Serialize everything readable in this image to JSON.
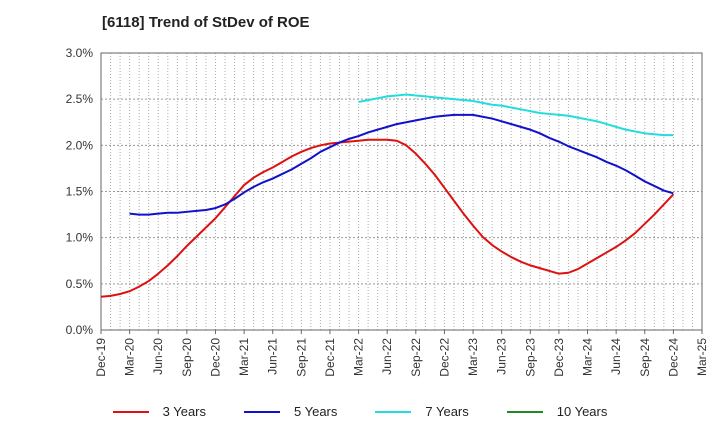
{
  "title": "[6118]  Trend of StDev of ROE",
  "chart_data": {
    "type": "line",
    "title": "[6118]  Trend of StDev of ROE",
    "xlabel": "",
    "ylabel": "",
    "x_ticks": [
      "Dec-19",
      "Mar-20",
      "Jun-20",
      "Sep-20",
      "Dec-20",
      "Mar-21",
      "Jun-21",
      "Sep-21",
      "Dec-21",
      "Mar-22",
      "Jun-22",
      "Sep-22",
      "Dec-22",
      "Mar-23",
      "Jun-23",
      "Sep-23",
      "Dec-23",
      "Mar-24",
      "Jun-24",
      "Sep-24",
      "Dec-24",
      "Mar-25"
    ],
    "y_ticks": [
      "0.0%",
      "0.5%",
      "1.0%",
      "1.5%",
      "2.0%",
      "2.5%",
      "3.0%"
    ],
    "ylim": [
      0,
      3.0
    ],
    "grid": true,
    "legend_position": "bottom",
    "series": [
      {
        "name": "3 Years",
        "color": "#dd1111",
        "points": [
          [
            "Dec-19",
            0.36
          ],
          [
            "Jan-20",
            0.37
          ],
          [
            "Feb-20",
            0.39
          ],
          [
            "Mar-20",
            0.42
          ],
          [
            "Apr-20",
            0.47
          ],
          [
            "May-20",
            0.53
          ],
          [
            "Jun-20",
            0.61
          ],
          [
            "Jul-20",
            0.7
          ],
          [
            "Aug-20",
            0.8
          ],
          [
            "Sep-20",
            0.91
          ],
          [
            "Oct-20",
            1.01
          ],
          [
            "Nov-20",
            1.11
          ],
          [
            "Dec-20",
            1.21
          ],
          [
            "Jan-21",
            1.33
          ],
          [
            "Feb-21",
            1.45
          ],
          [
            "Mar-21",
            1.57
          ],
          [
            "Apr-21",
            1.65
          ],
          [
            "May-21",
            1.71
          ],
          [
            "Jun-21",
            1.76
          ],
          [
            "Jul-21",
            1.82
          ],
          [
            "Aug-21",
            1.88
          ],
          [
            "Sep-21",
            1.93
          ],
          [
            "Oct-21",
            1.97
          ],
          [
            "Nov-21",
            2.0
          ],
          [
            "Dec-21",
            2.02
          ],
          [
            "Jan-22",
            2.03
          ],
          [
            "Feb-22",
            2.04
          ],
          [
            "Mar-22",
            2.05
          ],
          [
            "Apr-22",
            2.06
          ],
          [
            "May-22",
            2.06
          ],
          [
            "Jun-22",
            2.06
          ],
          [
            "Jul-22",
            2.05
          ],
          [
            "Aug-22",
            2.0
          ],
          [
            "Sep-22",
            1.91
          ],
          [
            "Oct-22",
            1.8
          ],
          [
            "Nov-22",
            1.68
          ],
          [
            "Dec-22",
            1.54
          ],
          [
            "Jan-23",
            1.4
          ],
          [
            "Feb-23",
            1.26
          ],
          [
            "Mar-23",
            1.13
          ],
          [
            "Apr-23",
            1.01
          ],
          [
            "May-23",
            0.92
          ],
          [
            "Jun-23",
            0.85
          ],
          [
            "Jul-23",
            0.79
          ],
          [
            "Aug-23",
            0.74
          ],
          [
            "Sep-23",
            0.7
          ],
          [
            "Oct-23",
            0.67
          ],
          [
            "Nov-23",
            0.64
          ],
          [
            "Dec-23",
            0.61
          ],
          [
            "Jan-24",
            0.62
          ],
          [
            "Feb-24",
            0.66
          ],
          [
            "Mar-24",
            0.72
          ],
          [
            "Apr-24",
            0.78
          ],
          [
            "May-24",
            0.84
          ],
          [
            "Jun-24",
            0.9
          ],
          [
            "Jul-24",
            0.97
          ],
          [
            "Aug-24",
            1.05
          ],
          [
            "Sep-24",
            1.15
          ],
          [
            "Oct-24",
            1.25
          ],
          [
            "Nov-24",
            1.36
          ],
          [
            "Dec-24",
            1.47
          ]
        ]
      },
      {
        "name": "5 Years",
        "color": "#1111cc",
        "points": [
          [
            "Mar-20",
            1.26
          ],
          [
            "Apr-20",
            1.25
          ],
          [
            "May-20",
            1.25
          ],
          [
            "Jun-20",
            1.26
          ],
          [
            "Jul-20",
            1.27
          ],
          [
            "Aug-20",
            1.27
          ],
          [
            "Sep-20",
            1.28
          ],
          [
            "Oct-20",
            1.29
          ],
          [
            "Nov-20",
            1.3
          ],
          [
            "Dec-20",
            1.32
          ],
          [
            "Jan-21",
            1.36
          ],
          [
            "Feb-21",
            1.42
          ],
          [
            "Mar-21",
            1.49
          ],
          [
            "Apr-21",
            1.55
          ],
          [
            "May-21",
            1.6
          ],
          [
            "Jun-21",
            1.64
          ],
          [
            "Jul-21",
            1.69
          ],
          [
            "Aug-21",
            1.74
          ],
          [
            "Sep-21",
            1.8
          ],
          [
            "Oct-21",
            1.86
          ],
          [
            "Nov-21",
            1.93
          ],
          [
            "Dec-21",
            1.98
          ],
          [
            "Jan-22",
            2.03
          ],
          [
            "Feb-22",
            2.07
          ],
          [
            "Mar-22",
            2.1
          ],
          [
            "Apr-22",
            2.14
          ],
          [
            "May-22",
            2.17
          ],
          [
            "Jun-22",
            2.2
          ],
          [
            "Jul-22",
            2.23
          ],
          [
            "Aug-22",
            2.25
          ],
          [
            "Sep-22",
            2.27
          ],
          [
            "Oct-22",
            2.29
          ],
          [
            "Nov-22",
            2.31
          ],
          [
            "Dec-22",
            2.32
          ],
          [
            "Jan-23",
            2.33
          ],
          [
            "Feb-23",
            2.33
          ],
          [
            "Mar-23",
            2.33
          ],
          [
            "Apr-23",
            2.31
          ],
          [
            "May-23",
            2.29
          ],
          [
            "Jun-23",
            2.26
          ],
          [
            "Jul-23",
            2.23
          ],
          [
            "Aug-23",
            2.2
          ],
          [
            "Sep-23",
            2.17
          ],
          [
            "Oct-23",
            2.13
          ],
          [
            "Nov-23",
            2.08
          ],
          [
            "Dec-23",
            2.04
          ],
          [
            "Jan-24",
            1.99
          ],
          [
            "Feb-24",
            1.95
          ],
          [
            "Mar-24",
            1.91
          ],
          [
            "Apr-24",
            1.87
          ],
          [
            "May-24",
            1.82
          ],
          [
            "Jun-24",
            1.78
          ],
          [
            "Jul-24",
            1.73
          ],
          [
            "Aug-24",
            1.67
          ],
          [
            "Sep-24",
            1.61
          ],
          [
            "Oct-24",
            1.56
          ],
          [
            "Nov-24",
            1.51
          ],
          [
            "Dec-24",
            1.48
          ]
        ]
      },
      {
        "name": "7 Years",
        "color": "#22dddd",
        "points": [
          [
            "Mar-22",
            2.47
          ],
          [
            "Apr-22",
            2.49
          ],
          [
            "May-22",
            2.51
          ],
          [
            "Jun-22",
            2.53
          ],
          [
            "Jul-22",
            2.54
          ],
          [
            "Aug-22",
            2.55
          ],
          [
            "Sep-22",
            2.54
          ],
          [
            "Oct-22",
            2.53
          ],
          [
            "Nov-22",
            2.52
          ],
          [
            "Dec-22",
            2.51
          ],
          [
            "Jan-23",
            2.5
          ],
          [
            "Feb-23",
            2.49
          ],
          [
            "Mar-23",
            2.48
          ],
          [
            "Apr-23",
            2.46
          ],
          [
            "May-23",
            2.44
          ],
          [
            "Jun-23",
            2.43
          ],
          [
            "Jul-23",
            2.41
          ],
          [
            "Aug-23",
            2.39
          ],
          [
            "Sep-23",
            2.37
          ],
          [
            "Oct-23",
            2.35
          ],
          [
            "Nov-23",
            2.34
          ],
          [
            "Dec-23",
            2.33
          ],
          [
            "Jan-24",
            2.32
          ],
          [
            "Feb-24",
            2.3
          ],
          [
            "Mar-24",
            2.28
          ],
          [
            "Apr-24",
            2.26
          ],
          [
            "May-24",
            2.23
          ],
          [
            "Jun-24",
            2.2
          ],
          [
            "Jul-24",
            2.17
          ],
          [
            "Aug-24",
            2.15
          ],
          [
            "Sep-24",
            2.13
          ],
          [
            "Oct-24",
            2.12
          ],
          [
            "Nov-24",
            2.11
          ],
          [
            "Dec-24",
            2.11
          ]
        ]
      },
      {
        "name": "10 Years",
        "color": "#228822",
        "points": []
      }
    ]
  }
}
